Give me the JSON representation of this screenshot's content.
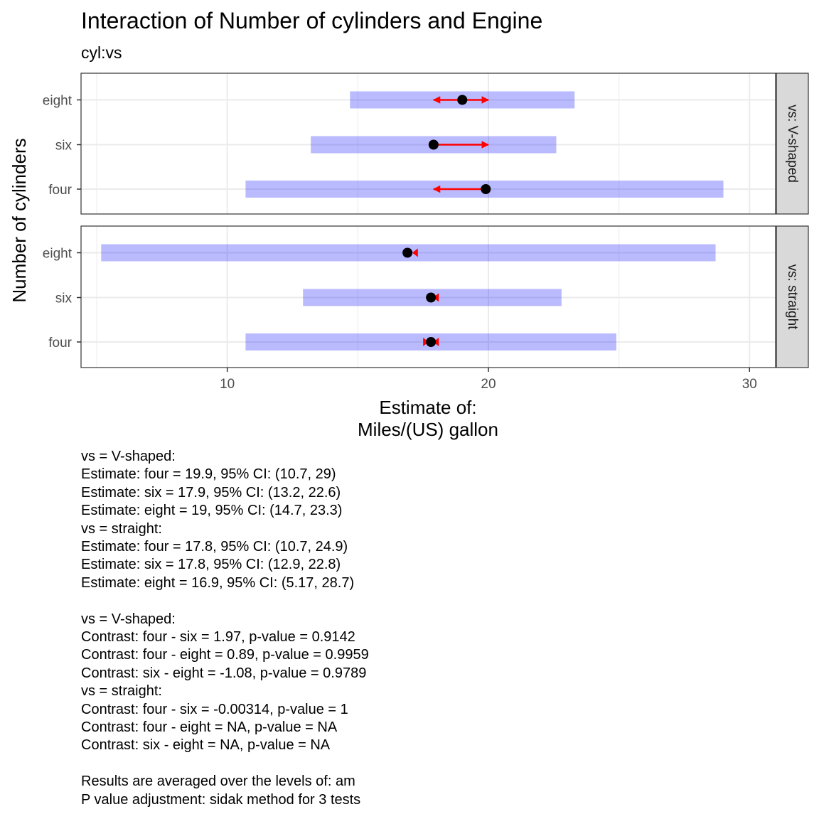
{
  "chart_data": {
    "type": "interval-plot",
    "title": "Interaction of Number of cylinders and Engine",
    "subtitle": "cyl:vs",
    "xlabel_line1": "Estimate of:",
    "xlabel_line2": "Miles/(US) gallon",
    "ylabel": "Number of cylinders",
    "xlim": [
      4.4,
      31
    ],
    "x_ticks": [
      10,
      20,
      30
    ],
    "x_tick_labels": [
      "10",
      "20",
      "30"
    ],
    "categories": [
      "eight",
      "six",
      "four"
    ],
    "colors": {
      "ci_band": "#0000ff",
      "arrow": "#ff0000",
      "point": "#000000",
      "strip": "#d9d9d9",
      "grid": "#ebebeb"
    },
    "panels": [
      {
        "strip_label": "vs: V-shaped",
        "rows": [
          {
            "category": "eight",
            "estimate": 19.0,
            "ci_low": 14.7,
            "ci_high": 23.3,
            "arrow_low": 17.9,
            "arrow_high": 20.0,
            "arrow_left": true,
            "arrow_right": true
          },
          {
            "category": "six",
            "estimate": 17.9,
            "ci_low": 13.2,
            "ci_high": 22.6,
            "arrow_low": 17.9,
            "arrow_high": 20.0,
            "arrow_left": false,
            "arrow_right": true
          },
          {
            "category": "four",
            "estimate": 19.9,
            "ci_low": 10.7,
            "ci_high": 29.0,
            "arrow_low": 17.9,
            "arrow_high": 19.9,
            "arrow_left": true,
            "arrow_right": false
          }
        ]
      },
      {
        "strip_label": "vs: straight",
        "rows": [
          {
            "category": "eight",
            "estimate": 16.9,
            "ci_low": 5.17,
            "ci_high": 28.7,
            "arrow_low": 16.9,
            "arrow_high": 17.3,
            "arrow_left": false,
            "arrow_right": false,
            "mark_low": false,
            "mark_high": true
          },
          {
            "category": "six",
            "estimate": 17.8,
            "ci_low": 12.9,
            "ci_high": 22.8,
            "arrow_low": 17.8,
            "arrow_high": 18.1,
            "arrow_left": false,
            "arrow_right": false,
            "mark_low": false,
            "mark_high": true
          },
          {
            "category": "four",
            "estimate": 17.8,
            "ci_low": 10.7,
            "ci_high": 24.9,
            "arrow_low": 17.5,
            "arrow_high": 18.1,
            "arrow_left": false,
            "arrow_right": false,
            "mark_low": true,
            "mark_high": true
          }
        ]
      }
    ]
  },
  "caption_blocks": [
    [
      "vs = V-shaped:",
      "Estimate: four = 19.9, 95% CI: (10.7, 29)",
      "Estimate: six = 17.9, 95% CI: (13.2, 22.6)",
      "Estimate: eight = 19, 95% CI: (14.7, 23.3)",
      "vs = straight:",
      "Estimate: four = 17.8, 95% CI: (10.7, 24.9)",
      "Estimate: six = 17.8, 95% CI: (12.9, 22.8)",
      "Estimate: eight = 16.9, 95% CI: (5.17, 28.7)"
    ],
    [
      "vs = V-shaped:",
      "Contrast: four - six = 1.97, p-value = 0.9142",
      "Contrast: four - eight = 0.89, p-value = 0.9959",
      "Contrast: six - eight = -1.08, p-value = 0.9789",
      "vs = straight:",
      "Contrast: four - six = -0.00314, p-value = 1",
      "Contrast: four - eight = NA, p-value = NA",
      "Contrast: six - eight = NA, p-value = NA"
    ],
    [
      "Results are averaged over the levels of: am",
      "P value adjustment: sidak method for 3 tests"
    ]
  ]
}
